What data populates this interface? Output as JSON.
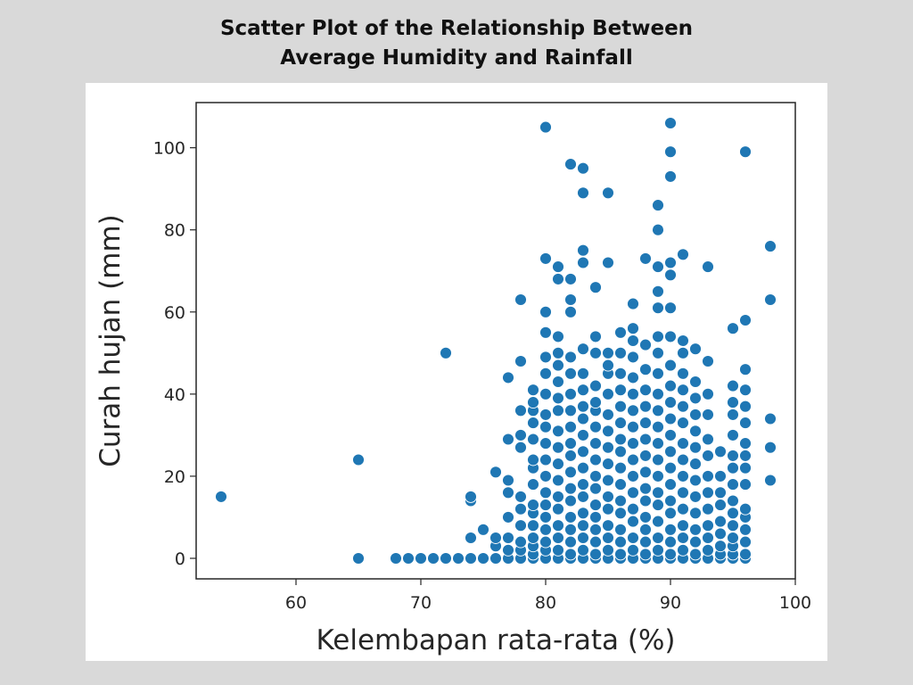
{
  "page_title": {
    "line1": "Scatter Plot of the Relationship Between",
    "line2": "Average Humidity and Rainfall"
  },
  "chart_data": {
    "type": "scatter",
    "title": "",
    "xlabel": "Kelembapan rata-rata (%)",
    "ylabel": "Curah hujan (mm)",
    "xlim": [
      52,
      100
    ],
    "ylim": [
      -5,
      111
    ],
    "xticks": [
      60,
      70,
      80,
      90,
      100
    ],
    "yticks": [
      0,
      20,
      40,
      60,
      80,
      100
    ],
    "grid": false,
    "marker_color": "#1f77b4",
    "edge_color": "#ffffff",
    "points": [
      [
        54,
        15
      ],
      [
        65,
        24
      ],
      [
        65,
        0
      ],
      [
        72,
        50
      ],
      [
        68,
        0
      ],
      [
        69,
        0
      ],
      [
        70,
        0
      ],
      [
        71,
        0
      ],
      [
        72,
        0
      ],
      [
        73,
        0
      ],
      [
        74,
        0
      ],
      [
        75,
        0
      ],
      [
        76,
        0
      ],
      [
        77,
        0
      ],
      [
        78,
        0
      ],
      [
        79,
        0
      ],
      [
        80,
        0
      ],
      [
        81,
        0
      ],
      [
        82,
        0
      ],
      [
        83,
        0
      ],
      [
        84,
        0
      ],
      [
        85,
        0
      ],
      [
        86,
        0
      ],
      [
        87,
        0
      ],
      [
        88,
        0
      ],
      [
        89,
        0
      ],
      [
        90,
        0
      ],
      [
        91,
        0
      ],
      [
        92,
        0
      ],
      [
        93,
        0
      ],
      [
        94,
        0
      ],
      [
        95,
        0
      ],
      [
        96,
        0
      ],
      [
        74,
        5
      ],
      [
        74,
        14
      ],
      [
        74,
        15
      ],
      [
        75,
        7
      ],
      [
        76,
        3
      ],
      [
        76,
        5
      ],
      [
        76,
        21
      ],
      [
        77,
        2
      ],
      [
        77,
        5
      ],
      [
        77,
        10
      ],
      [
        77,
        16
      ],
      [
        77,
        19
      ],
      [
        77,
        29
      ],
      [
        77,
        44
      ],
      [
        78,
        2
      ],
      [
        78,
        4
      ],
      [
        78,
        8
      ],
      [
        78,
        12
      ],
      [
        78,
        15
      ],
      [
        78,
        27
      ],
      [
        78,
        30
      ],
      [
        78,
        36
      ],
      [
        78,
        48
      ],
      [
        78,
        63
      ],
      [
        79,
        1
      ],
      [
        79,
        3
      ],
      [
        79,
        5
      ],
      [
        79,
        8
      ],
      [
        79,
        11
      ],
      [
        79,
        13
      ],
      [
        79,
        18
      ],
      [
        79,
        22
      ],
      [
        79,
        24
      ],
      [
        79,
        29
      ],
      [
        79,
        33
      ],
      [
        79,
        36
      ],
      [
        79,
        38
      ],
      [
        79,
        41
      ],
      [
        80,
        2
      ],
      [
        80,
        4
      ],
      [
        80,
        7
      ],
      [
        80,
        10
      ],
      [
        80,
        13
      ],
      [
        80,
        16
      ],
      [
        80,
        20
      ],
      [
        80,
        24
      ],
      [
        80,
        28
      ],
      [
        80,
        32
      ],
      [
        80,
        35
      ],
      [
        80,
        40
      ],
      [
        80,
        45
      ],
      [
        80,
        49
      ],
      [
        80,
        55
      ],
      [
        80,
        60
      ],
      [
        80,
        73
      ],
      [
        80,
        105
      ],
      [
        81,
        2
      ],
      [
        81,
        5
      ],
      [
        81,
        8
      ],
      [
        81,
        12
      ],
      [
        81,
        15
      ],
      [
        81,
        19
      ],
      [
        81,
        23
      ],
      [
        81,
        27
      ],
      [
        81,
        31
      ],
      [
        81,
        36
      ],
      [
        81,
        39
      ],
      [
        81,
        43
      ],
      [
        81,
        47
      ],
      [
        81,
        50
      ],
      [
        81,
        54
      ],
      [
        81,
        68
      ],
      [
        81,
        71
      ],
      [
        82,
        1
      ],
      [
        82,
        4
      ],
      [
        82,
        7
      ],
      [
        82,
        10
      ],
      [
        82,
        14
      ],
      [
        82,
        17
      ],
      [
        82,
        21
      ],
      [
        82,
        25
      ],
      [
        82,
        28
      ],
      [
        82,
        32
      ],
      [
        82,
        36
      ],
      [
        82,
        40
      ],
      [
        82,
        45
      ],
      [
        82,
        49
      ],
      [
        82,
        60
      ],
      [
        82,
        63
      ],
      [
        82,
        68
      ],
      [
        82,
        96
      ],
      [
        83,
        2
      ],
      [
        83,
        5
      ],
      [
        83,
        8
      ],
      [
        83,
        11
      ],
      [
        83,
        15
      ],
      [
        83,
        18
      ],
      [
        83,
        22
      ],
      [
        83,
        26
      ],
      [
        83,
        30
      ],
      [
        83,
        34
      ],
      [
        83,
        37
      ],
      [
        83,
        41
      ],
      [
        83,
        45
      ],
      [
        83,
        51
      ],
      [
        83,
        72
      ],
      [
        83,
        75
      ],
      [
        83,
        89
      ],
      [
        83,
        95
      ],
      [
        84,
        1
      ],
      [
        84,
        4
      ],
      [
        84,
        7
      ],
      [
        84,
        10
      ],
      [
        84,
        13
      ],
      [
        84,
        17
      ],
      [
        84,
        20
      ],
      [
        84,
        24
      ],
      [
        84,
        28
      ],
      [
        84,
        32
      ],
      [
        84,
        36
      ],
      [
        84,
        38
      ],
      [
        84,
        42
      ],
      [
        84,
        50
      ],
      [
        84,
        54
      ],
      [
        84,
        66
      ],
      [
        85,
        2
      ],
      [
        85,
        5
      ],
      [
        85,
        8
      ],
      [
        85,
        12
      ],
      [
        85,
        15
      ],
      [
        85,
        19
      ],
      [
        85,
        23
      ],
      [
        85,
        27
      ],
      [
        85,
        31
      ],
      [
        85,
        35
      ],
      [
        85,
        40
      ],
      [
        85,
        45
      ],
      [
        85,
        47
      ],
      [
        85,
        50
      ],
      [
        85,
        72
      ],
      [
        85,
        89
      ],
      [
        86,
        1
      ],
      [
        86,
        4
      ],
      [
        86,
        7
      ],
      [
        86,
        11
      ],
      [
        86,
        14
      ],
      [
        86,
        18
      ],
      [
        86,
        22
      ],
      [
        86,
        26
      ],
      [
        86,
        29
      ],
      [
        86,
        33
      ],
      [
        86,
        37
      ],
      [
        86,
        41
      ],
      [
        86,
        45
      ],
      [
        86,
        50
      ],
      [
        86,
        55
      ],
      [
        87,
        2
      ],
      [
        87,
        5
      ],
      [
        87,
        9
      ],
      [
        87,
        12
      ],
      [
        87,
        16
      ],
      [
        87,
        20
      ],
      [
        87,
        24
      ],
      [
        87,
        28
      ],
      [
        87,
        32
      ],
      [
        87,
        36
      ],
      [
        87,
        40
      ],
      [
        87,
        44
      ],
      [
        87,
        49
      ],
      [
        87,
        53
      ],
      [
        87,
        56
      ],
      [
        87,
        62
      ],
      [
        88,
        1
      ],
      [
        88,
        4
      ],
      [
        88,
        7
      ],
      [
        88,
        10
      ],
      [
        88,
        14
      ],
      [
        88,
        17
      ],
      [
        88,
        21
      ],
      [
        88,
        25
      ],
      [
        88,
        29
      ],
      [
        88,
        33
      ],
      [
        88,
        37
      ],
      [
        88,
        41
      ],
      [
        88,
        46
      ],
      [
        88,
        52
      ],
      [
        88,
        73
      ],
      [
        89,
        2
      ],
      [
        89,
        5
      ],
      [
        89,
        9
      ],
      [
        89,
        13
      ],
      [
        89,
        16
      ],
      [
        89,
        20
      ],
      [
        89,
        24
      ],
      [
        89,
        28
      ],
      [
        89,
        32
      ],
      [
        89,
        36
      ],
      [
        89,
        40
      ],
      [
        89,
        45
      ],
      [
        89,
        50
      ],
      [
        89,
        54
      ],
      [
        89,
        61
      ],
      [
        89,
        65
      ],
      [
        89,
        71
      ],
      [
        89,
        80
      ],
      [
        89,
        86
      ],
      [
        90,
        1
      ],
      [
        90,
        4
      ],
      [
        90,
        7
      ],
      [
        90,
        11
      ],
      [
        90,
        14
      ],
      [
        90,
        18
      ],
      [
        90,
        22
      ],
      [
        90,
        26
      ],
      [
        90,
        30
      ],
      [
        90,
        34
      ],
      [
        90,
        38
      ],
      [
        90,
        42
      ],
      [
        90,
        47
      ],
      [
        90,
        54
      ],
      [
        90,
        61
      ],
      [
        90,
        69
      ],
      [
        90,
        72
      ],
      [
        90,
        93
      ],
      [
        90,
        99
      ],
      [
        90,
        106
      ],
      [
        91,
        2
      ],
      [
        91,
        5
      ],
      [
        91,
        8
      ],
      [
        91,
        12
      ],
      [
        91,
        16
      ],
      [
        91,
        20
      ],
      [
        91,
        24
      ],
      [
        91,
        28
      ],
      [
        91,
        33
      ],
      [
        91,
        37
      ],
      [
        91,
        41
      ],
      [
        91,
        45
      ],
      [
        91,
        50
      ],
      [
        91,
        53
      ],
      [
        91,
        74
      ],
      [
        92,
        1
      ],
      [
        92,
        4
      ],
      [
        92,
        7
      ],
      [
        92,
        11
      ],
      [
        92,
        15
      ],
      [
        92,
        19
      ],
      [
        92,
        23
      ],
      [
        92,
        27
      ],
      [
        92,
        31
      ],
      [
        92,
        35
      ],
      [
        92,
        39
      ],
      [
        92,
        43
      ],
      [
        92,
        51
      ],
      [
        93,
        2
      ],
      [
        93,
        5
      ],
      [
        93,
        8
      ],
      [
        93,
        12
      ],
      [
        93,
        16
      ],
      [
        93,
        20
      ],
      [
        93,
        25
      ],
      [
        93,
        29
      ],
      [
        93,
        35
      ],
      [
        93,
        40
      ],
      [
        93,
        48
      ],
      [
        93,
        71
      ],
      [
        94,
        1
      ],
      [
        94,
        3
      ],
      [
        94,
        6
      ],
      [
        94,
        9
      ],
      [
        94,
        13
      ],
      [
        94,
        16
      ],
      [
        94,
        20
      ],
      [
        94,
        26
      ],
      [
        95,
        1
      ],
      [
        95,
        3
      ],
      [
        95,
        5
      ],
      [
        95,
        8
      ],
      [
        95,
        11
      ],
      [
        95,
        14
      ],
      [
        95,
        18
      ],
      [
        95,
        22
      ],
      [
        95,
        25
      ],
      [
        95,
        30
      ],
      [
        95,
        35
      ],
      [
        95,
        38
      ],
      [
        95,
        42
      ],
      [
        95,
        56
      ],
      [
        96,
        1
      ],
      [
        96,
        4
      ],
      [
        96,
        7
      ],
      [
        96,
        10
      ],
      [
        96,
        12
      ],
      [
        96,
        18
      ],
      [
        96,
        22
      ],
      [
        96,
        25
      ],
      [
        96,
        28
      ],
      [
        96,
        33
      ],
      [
        96,
        37
      ],
      [
        96,
        41
      ],
      [
        96,
        46
      ],
      [
        96,
        58
      ],
      [
        96,
        99
      ],
      [
        98,
        19
      ],
      [
        98,
        27
      ],
      [
        98,
        34
      ],
      [
        98,
        63
      ],
      [
        98,
        76
      ]
    ]
  }
}
